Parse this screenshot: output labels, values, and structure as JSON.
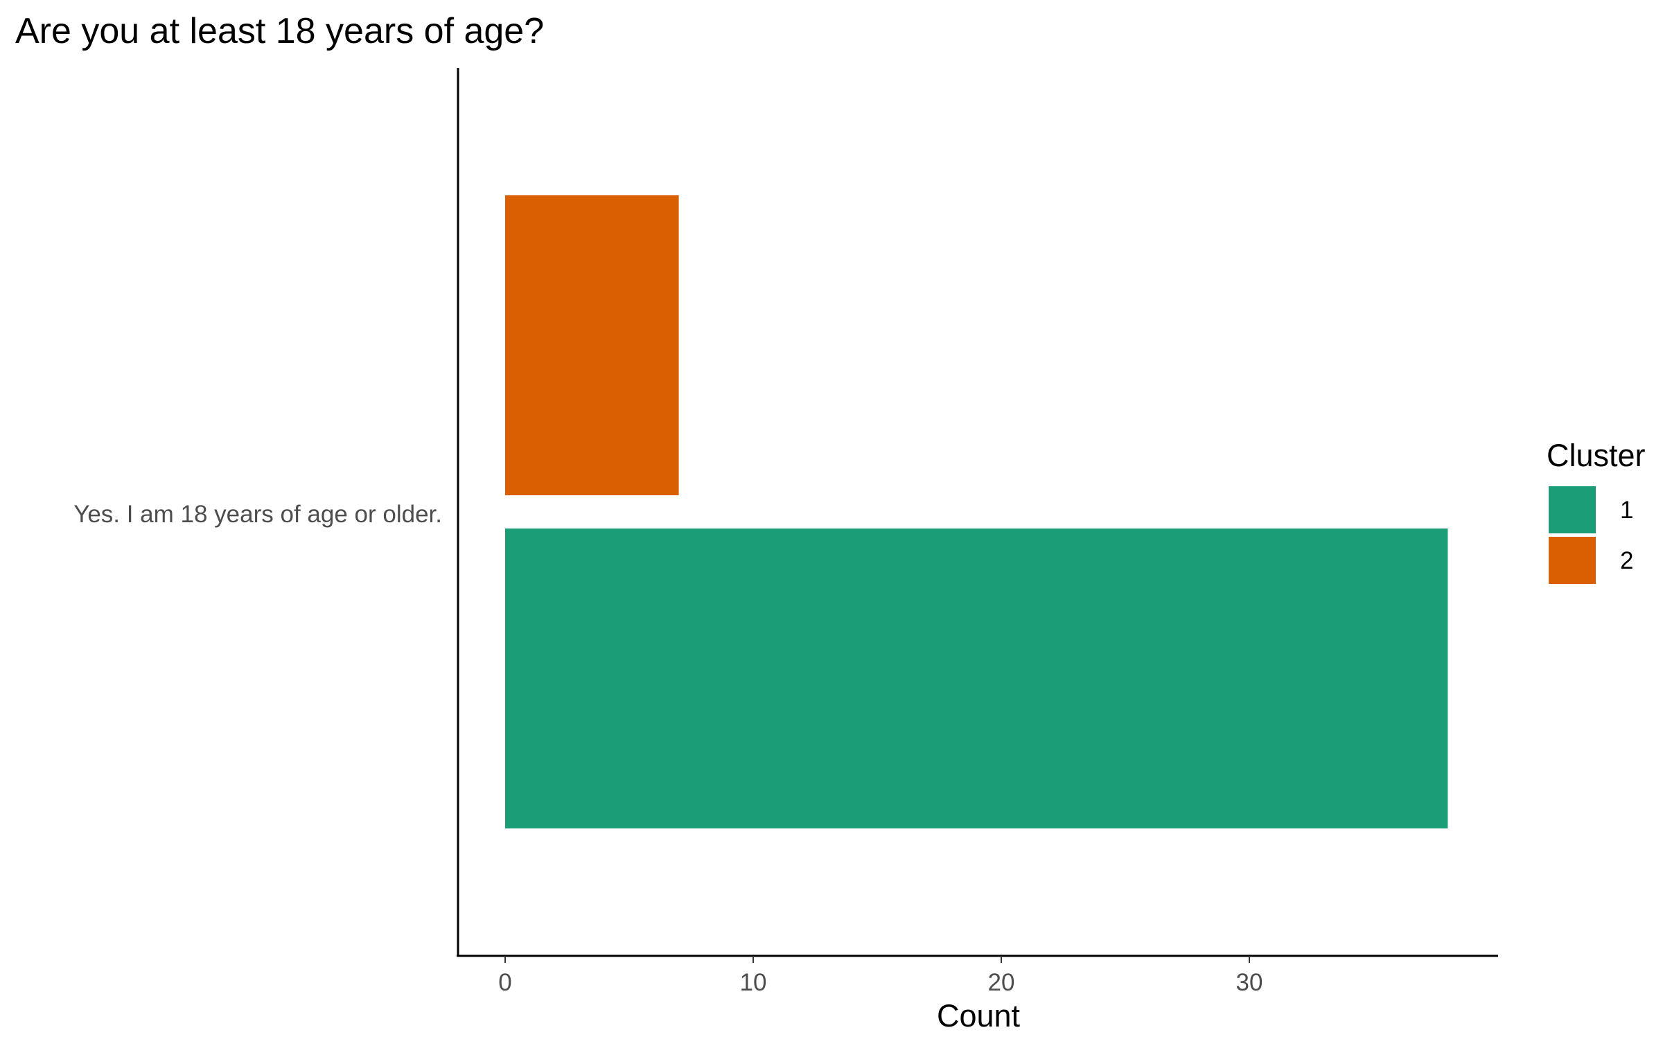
{
  "chart_data": {
    "type": "bar",
    "orientation": "horizontal",
    "title": "Are you at least 18 years of age?",
    "xlabel": "Count",
    "ylabel": "",
    "categories": [
      "Yes. I am 18 years of age or older."
    ],
    "series": [
      {
        "name": "1",
        "values": [
          38
        ],
        "color": "#1b9e77"
      },
      {
        "name": "2",
        "values": [
          7
        ],
        "color": "#d95f02"
      }
    ],
    "xlim": [
      0,
      40
    ],
    "x_ticks": [
      0,
      10,
      20,
      30
    ],
    "x_tick_labels": [
      "0",
      "10",
      "20",
      "30"
    ],
    "grid": false,
    "legend": {
      "title": "Cluster",
      "placement": "right",
      "items": [
        "1",
        "2"
      ]
    }
  }
}
